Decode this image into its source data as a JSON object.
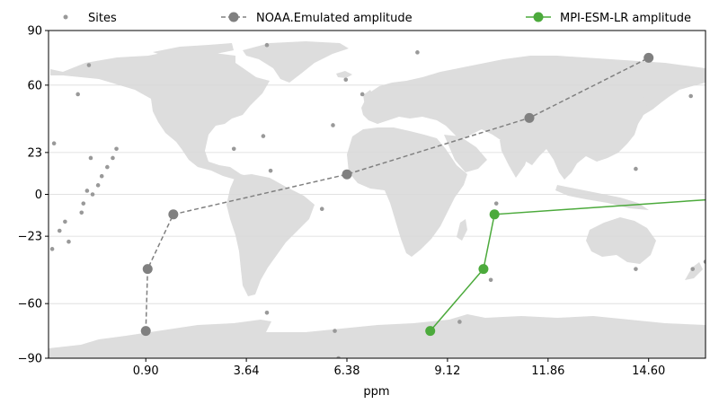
{
  "chart_data": {
    "type": "line",
    "title": "",
    "xlabel": "ppm",
    "ylabel": "",
    "xlim": [
      -1.75,
      16.15
    ],
    "ylim": [
      -90,
      90
    ],
    "xticks": [
      0.9,
      3.64,
      6.38,
      9.12,
      11.86,
      14.6
    ],
    "xtick_labels": [
      "0.90",
      "3.64",
      "6.38",
      "9.12",
      "11.86",
      "14.60"
    ],
    "yticks": [
      90,
      60,
      23,
      0,
      -23,
      -60,
      -90
    ],
    "ytick_labels": [
      "90",
      "60",
      "23",
      "0",
      "−23",
      "−60",
      "−90"
    ],
    "grid": "horizontal",
    "legend_position": "top",
    "background": "world-map",
    "colors": {
      "land": "#dddddd",
      "sites": "#999999",
      "noaa": "#808080",
      "mpi": "#4caa3c",
      "grid": "#d9d9d9"
    },
    "legend": [
      {
        "label": "Sites",
        "style": "marker",
        "color": "#999999"
      },
      {
        "label": "NOAA.Emulated amplitude",
        "style": "dashed-line-marker",
        "color": "#808080"
      },
      {
        "label": "MPI-ESM-LR amplitude",
        "style": "solid-line-marker",
        "color": "#4caa3c"
      }
    ],
    "series": [
      {
        "name": "NOAA.Emulated amplitude",
        "style": "dashed",
        "x": [
          0.9,
          0.95,
          1.65,
          6.38,
          11.35,
          14.6
        ],
        "y": [
          -75,
          -41,
          -11,
          11,
          42,
          75
        ]
      },
      {
        "name": "MPI-ESM-LR amplitude",
        "style": "solid",
        "x": [
          8.65,
          10.1,
          10.4,
          16.15
        ],
        "y": [
          -75,
          -41,
          -11,
          -3
        ]
      }
    ],
    "sites": [
      [
        -1.6,
        28
      ],
      [
        -1.65,
        -30
      ],
      [
        -1.45,
        -20
      ],
      [
        -1.3,
        -15
      ],
      [
        -1.2,
        -26
      ],
      [
        -0.95,
        55
      ],
      [
        -0.85,
        -10
      ],
      [
        -0.8,
        -5
      ],
      [
        -0.7,
        2
      ],
      [
        -0.65,
        71
      ],
      [
        -0.6,
        20
      ],
      [
        -0.55,
        0
      ],
      [
        -0.4,
        5
      ],
      [
        -0.3,
        10
      ],
      [
        -0.15,
        15
      ],
      [
        0.0,
        20
      ],
      [
        0.1,
        25
      ],
      [
        3.3,
        25
      ],
      [
        4.1,
        32
      ],
      [
        4.2,
        82
      ],
      [
        4.2,
        -65
      ],
      [
        4.3,
        13
      ],
      [
        5.7,
        -8
      ],
      [
        6.0,
        38
      ],
      [
        6.05,
        -75
      ],
      [
        6.15,
        -90
      ],
      [
        6.35,
        63
      ],
      [
        6.8,
        55
      ],
      [
        8.3,
        78
      ],
      [
        9.45,
        -70
      ],
      [
        10.3,
        -47
      ],
      [
        10.45,
        -5
      ],
      [
        14.25,
        14
      ],
      [
        14.25,
        -41
      ],
      [
        15.75,
        54
      ],
      [
        15.8,
        -41
      ],
      [
        16.15,
        -37
      ]
    ]
  }
}
